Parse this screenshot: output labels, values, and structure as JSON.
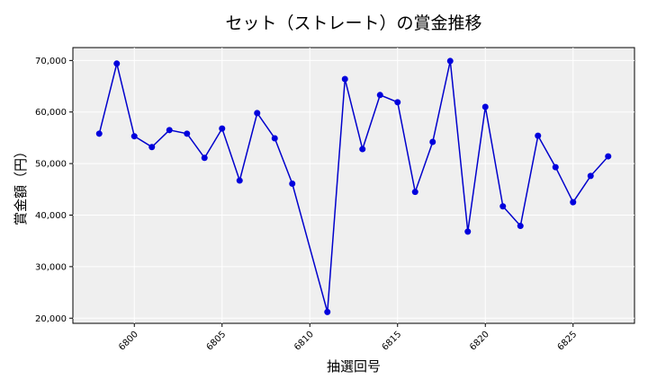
{
  "chart_data": {
    "type": "line",
    "title": "セット（ストレート）の賞金推移",
    "xlabel": "抽選回号",
    "ylabel": "賞金額（円）",
    "x": [
      6798,
      6799,
      6800,
      6801,
      6802,
      6803,
      6804,
      6805,
      6806,
      6807,
      6808,
      6809,
      6810,
      6811,
      6812,
      6813,
      6814,
      6815,
      6816,
      6817,
      6818,
      6819,
      6820,
      6821,
      6822,
      6823,
      6824,
      6825,
      6826,
      6827
    ],
    "series": [
      {
        "values": [
          55800,
          69400,
          55300,
          53200,
          56500,
          55800,
          51100,
          56800,
          46700,
          59800,
          54900,
          46100,
          null,
          21200,
          66400,
          52800,
          63300,
          61900,
          44500,
          54200,
          69900,
          36800,
          61000,
          41700,
          37900,
          55400,
          49300,
          42500,
          47600,
          51400
        ]
      }
    ],
    "xticks": [
      6800,
      6805,
      6810,
      6815,
      6820,
      6825
    ],
    "xtick_labels": [
      "6800",
      "6805",
      "6810",
      "6815",
      "6820",
      "6825"
    ],
    "yticks": [
      20000,
      30000,
      40000,
      50000,
      60000,
      70000
    ],
    "ytick_labels": [
      "20,000",
      "30,000",
      "40,000",
      "50,000",
      "60,000",
      "70,000"
    ],
    "xlim": [
      6796.5,
      6828.5
    ],
    "ylim": [
      19000,
      72500
    ],
    "grid": true,
    "legend": "none",
    "line_color": "#0000cc",
    "marker_color": "#0000dd",
    "plot_bg": "#efefef",
    "grid_color": "#ffffff"
  }
}
